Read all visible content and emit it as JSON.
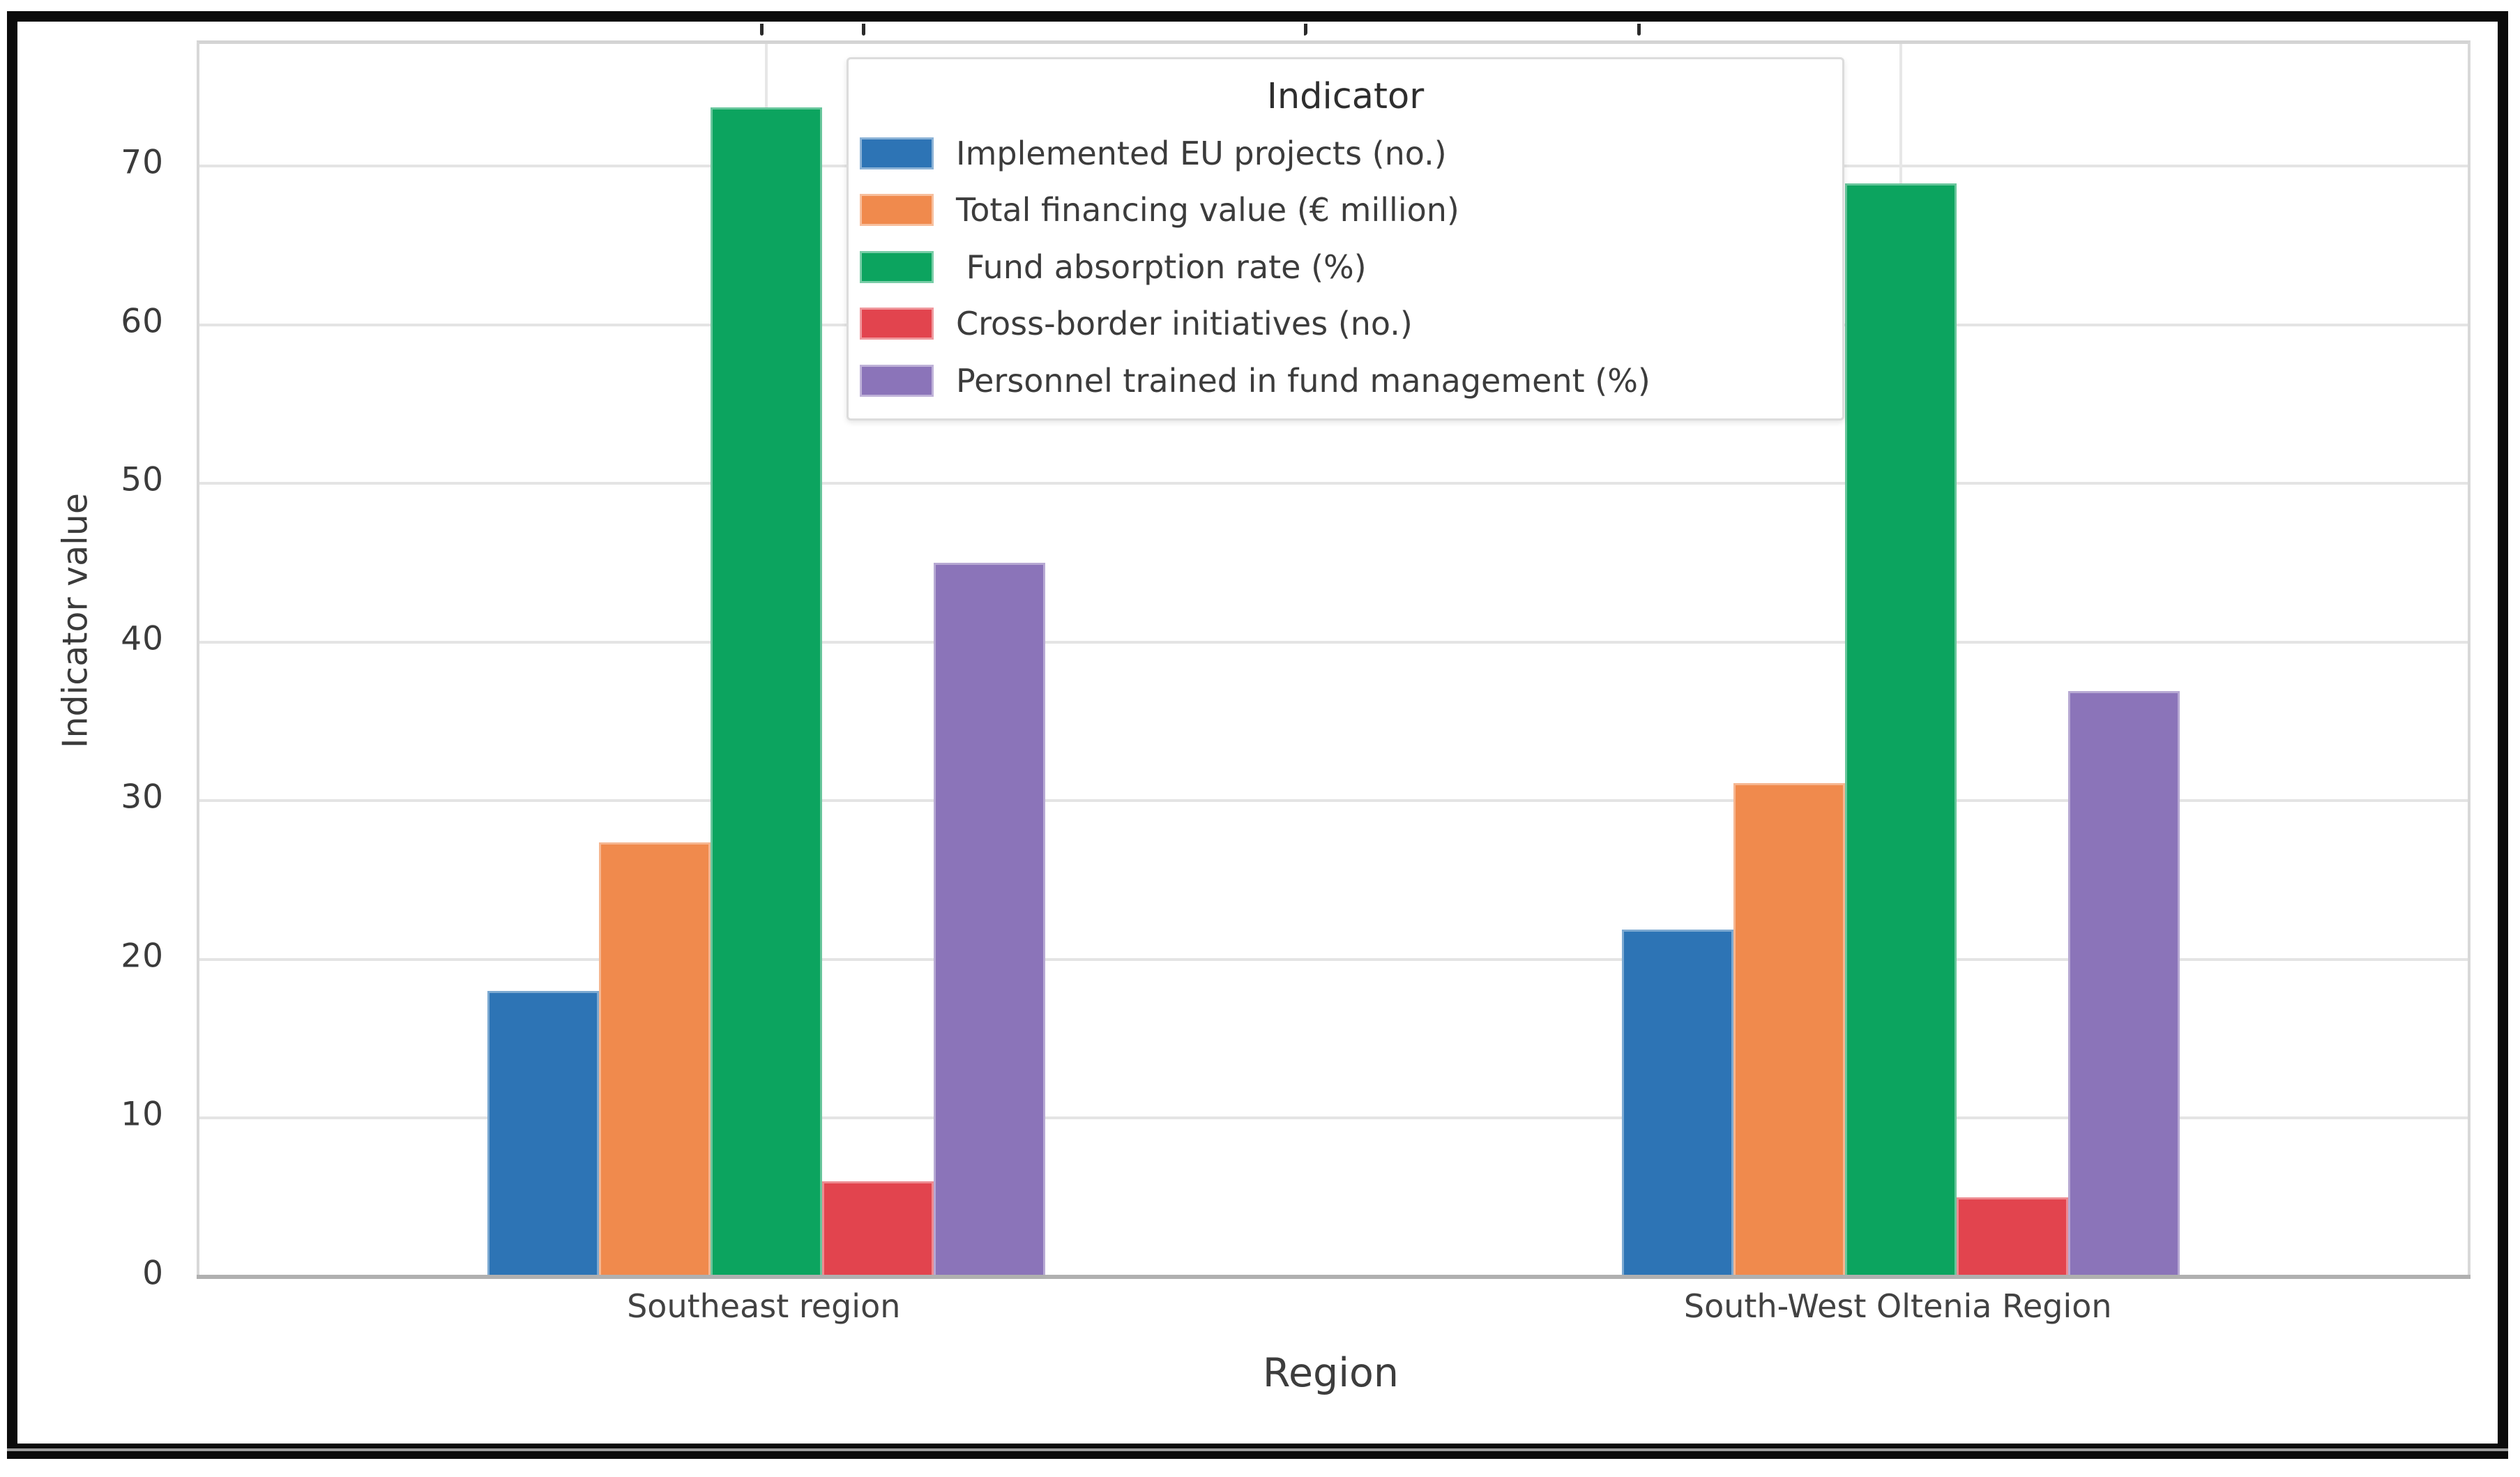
{
  "chart_data": {
    "type": "bar",
    "title": "",
    "categories": [
      "Southeast region",
      "South-West Oltenia Region"
    ],
    "series": [
      {
        "name": "Implemented EU projects (no.)",
        "color": "#2d74b5",
        "values": [
          18,
          21.9
        ]
      },
      {
        "name": "Total financing value (€ million)",
        "color": "#f08a4d",
        "values": [
          27.4,
          31.1
        ]
      },
      {
        "name": " Fund absorption rate (%)",
        "color": "#0ca45f",
        "values": [
          73.7,
          68.9
        ]
      },
      {
        "name": "Cross-border initiatives (no.)",
        "color": "#e2444e",
        "values": [
          6,
          5
        ]
      },
      {
        "name": "Personnel trained in fund management (%)",
        "color": "#8b74b9",
        "values": [
          45,
          36.9
        ]
      }
    ],
    "xlabel": "Region",
    "ylabel": "Indicator value",
    "ylim": [
      0,
      77.7
    ],
    "yticks": [
      0,
      10,
      20,
      30,
      40,
      50,
      60,
      70
    ],
    "grid": true,
    "legend": {
      "title": "Indicator",
      "position": "upper center, inside plot"
    }
  },
  "colors": {
    "gridline": "#e4e4e4",
    "spine": "#d8d8d8",
    "bottom_axis": "#b0b0b0",
    "tick_text": "#3b3b3b",
    "frame": "#0b0b0b",
    "background": "#ffffff"
  }
}
